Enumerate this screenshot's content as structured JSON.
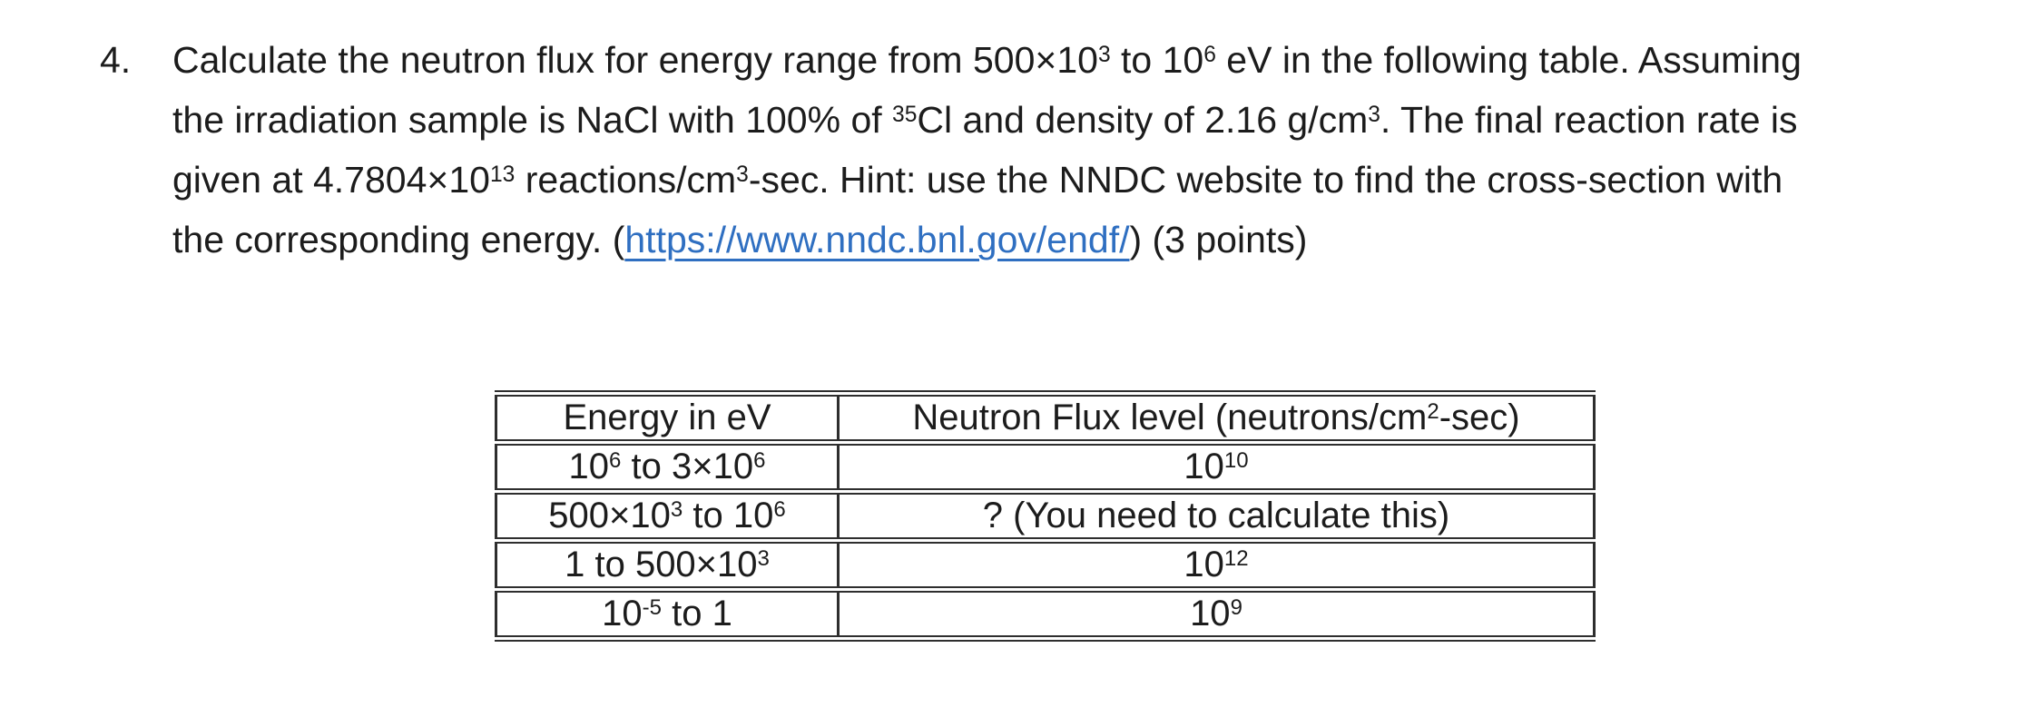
{
  "problem": {
    "number": "4.",
    "paragraph": [
      {
        "text": "Calculate the neutron flux for energy range from 500×10"
      },
      {
        "text": "3",
        "sup": true
      },
      {
        "text": " to 10"
      },
      {
        "text": "6",
        "sup": true
      },
      {
        "text": " eV in the following table. Assuming"
      },
      {
        "br": true
      },
      {
        "text": "the irradiation sample is NaCl with 100% of "
      },
      {
        "text": "35",
        "sup": true
      },
      {
        "text": "Cl and density of 2.16 g/cm"
      },
      {
        "text": "3",
        "sup": true
      },
      {
        "text": ". The final reaction rate is"
      },
      {
        "br": true
      },
      {
        "text": "given at 4.7804×10"
      },
      {
        "text": "13",
        "sup": true
      },
      {
        "text": " reactions/cm"
      },
      {
        "text": "3",
        "sup": true
      },
      {
        "text": "-sec. Hint: use the NNDC website to find the cross-section with"
      },
      {
        "br": true
      },
      {
        "text": "the corresponding energy. ("
      },
      {
        "text": "https://www.nndc.bnl.gov/endf/",
        "link": true,
        "name": "nndc-endf-link"
      },
      {
        "text": ") (3 points)"
      }
    ]
  },
  "table": {
    "header": {
      "energy": [
        {
          "text": "Energy in eV"
        }
      ],
      "flux": [
        {
          "text": "Neutron Flux level (neutrons/cm"
        },
        {
          "text": "2",
          "sup": true
        },
        {
          "text": "-sec)"
        }
      ]
    },
    "rows": [
      {
        "energy": [
          {
            "text": "10"
          },
          {
            "text": "6",
            "sup": true
          },
          {
            "text": " to 3×10"
          },
          {
            "text": "6",
            "sup": true
          }
        ],
        "flux": [
          {
            "text": "10"
          },
          {
            "text": "10",
            "sup": true
          }
        ]
      },
      {
        "energy": [
          {
            "text": "500×10"
          },
          {
            "text": "3",
            "sup": true
          },
          {
            "text": " to 10"
          },
          {
            "text": "6",
            "sup": true
          }
        ],
        "flux": [
          {
            "text": "? (You need to calculate this)"
          }
        ]
      },
      {
        "energy": [
          {
            "text": "1 to 500×10"
          },
          {
            "text": "3",
            "sup": true
          }
        ],
        "flux": [
          {
            "text": "10"
          },
          {
            "text": "12",
            "sup": true
          }
        ]
      },
      {
        "energy": [
          {
            "text": "10"
          },
          {
            "text": "-5",
            "sup": true
          },
          {
            "text": " to 1"
          }
        ],
        "flux": [
          {
            "text": "10"
          },
          {
            "text": "9",
            "sup": true
          }
        ]
      }
    ]
  },
  "colors": {
    "page_background": "#ffffff",
    "text": "#1c1c1c",
    "link": "#2f6fc1",
    "table_border": "#2e2e2e"
  }
}
